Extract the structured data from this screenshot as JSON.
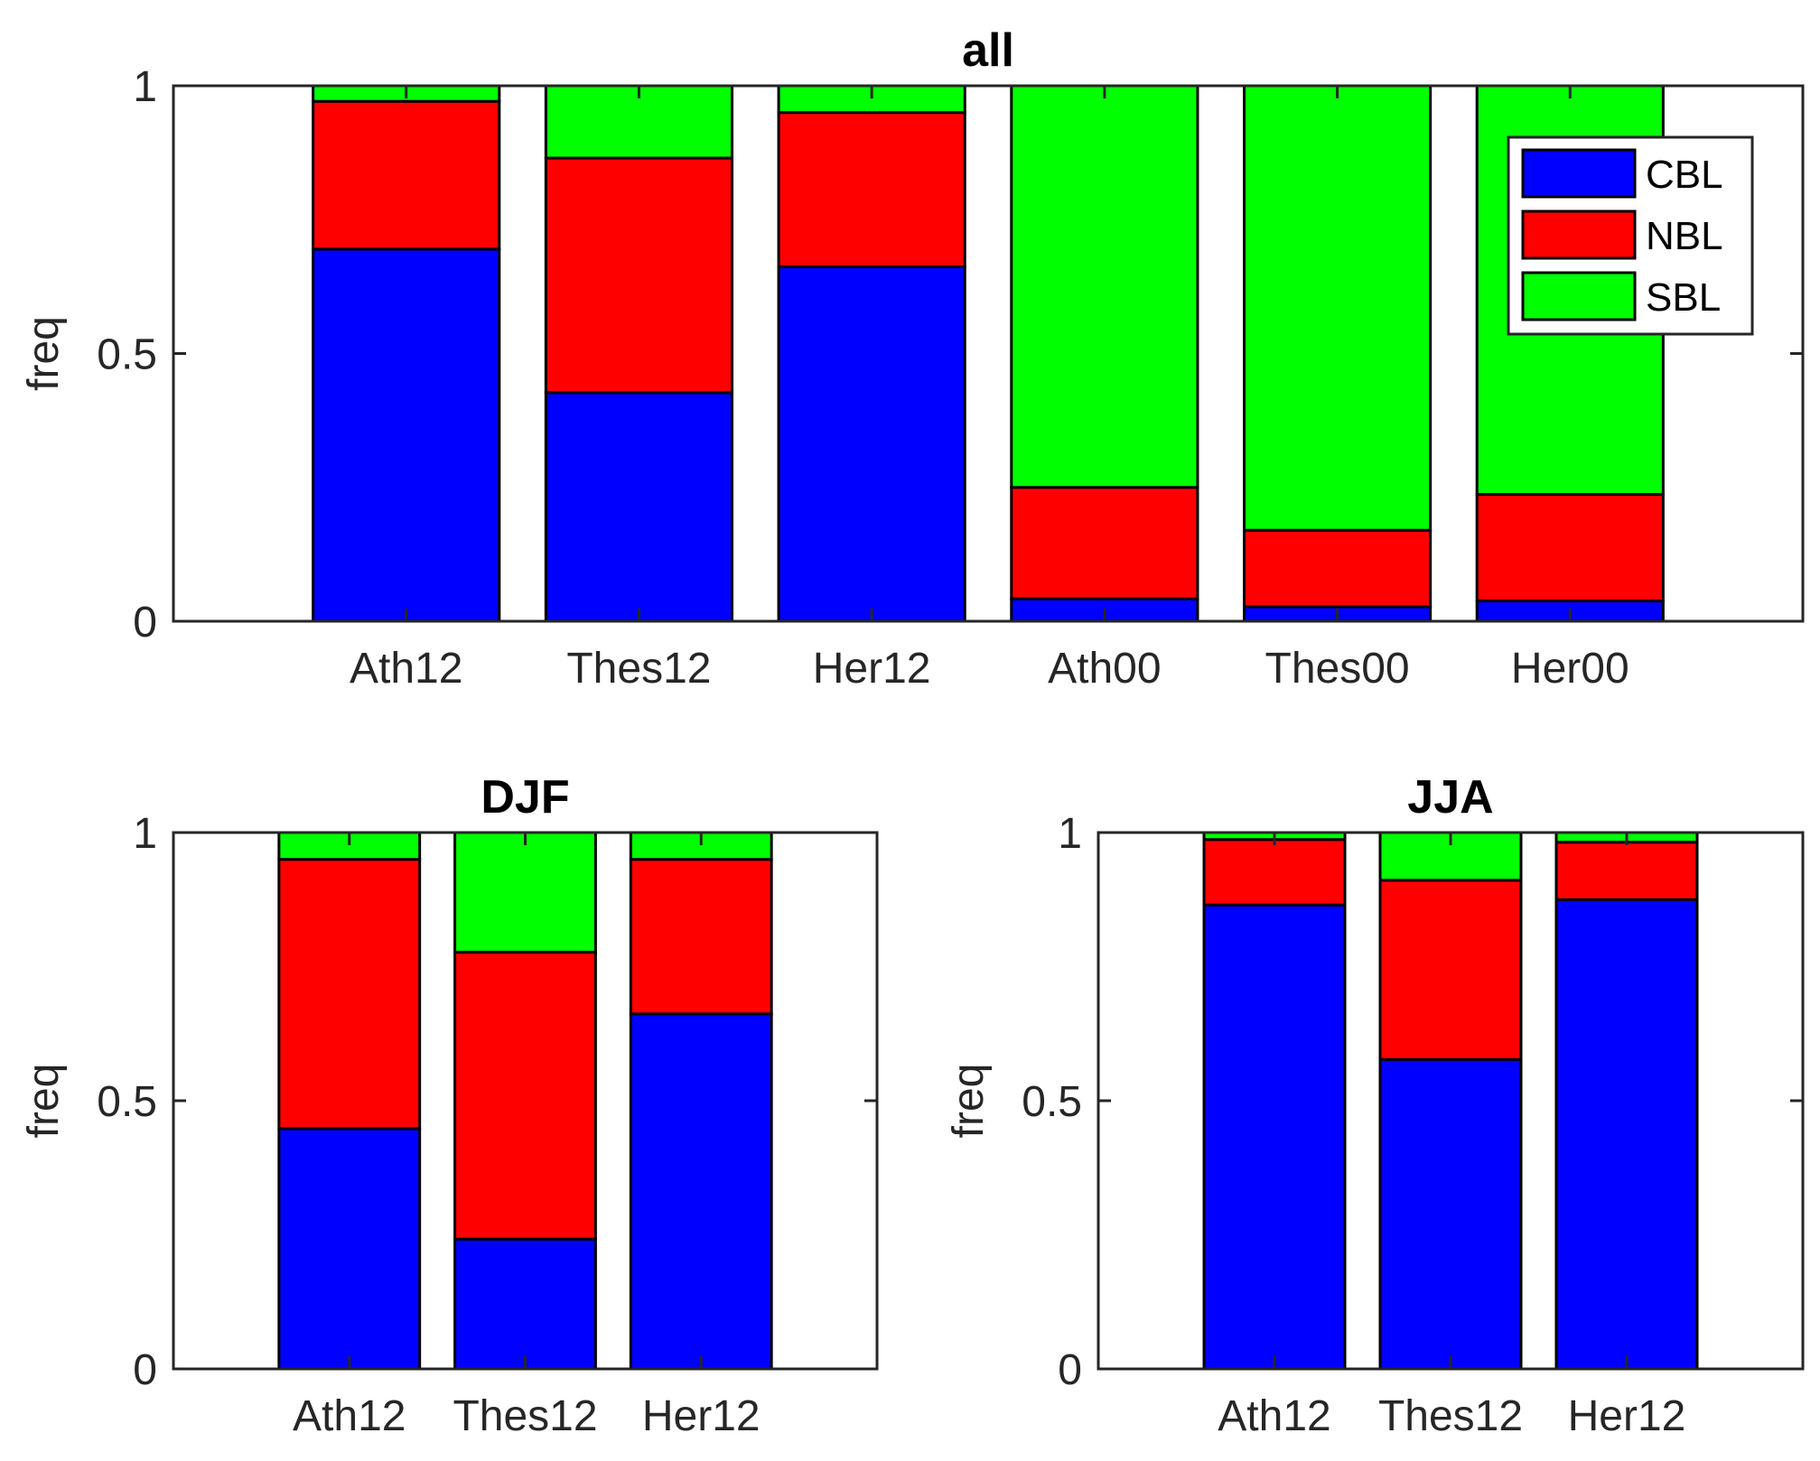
{
  "chart_data": [
    {
      "type": "bar",
      "stacked": true,
      "title": "all",
      "ylabel": "freq",
      "xlabel": "",
      "ylim": [
        0,
        1
      ],
      "yticks": [
        0,
        0.5,
        1
      ],
      "ytick_labels": [
        "0",
        "0.5",
        "1"
      ],
      "xlim": [
        0,
        7
      ],
      "categories": [
        "Ath12",
        "Thes12",
        "Her12",
        "Ath00",
        "Thes00",
        "Her00"
      ],
      "series": [
        {
          "name": "CBL",
          "color": "#0000ff",
          "values": [
            0.695,
            0.427,
            0.662,
            0.042,
            0.027,
            0.038
          ]
        },
        {
          "name": "NBL",
          "color": "#ff0000",
          "values": [
            0.276,
            0.438,
            0.288,
            0.208,
            0.143,
            0.199
          ]
        },
        {
          "name": "SBL",
          "color": "#00ff00",
          "values": [
            0.029,
            0.135,
            0.05,
            0.75,
            0.83,
            0.763
          ]
        }
      ],
      "legend": {
        "position": "top-right",
        "entries": [
          "CBL",
          "NBL",
          "SBL"
        ]
      }
    },
    {
      "type": "bar",
      "stacked": true,
      "title": "DJF",
      "ylabel": "freq",
      "xlabel": "",
      "ylim": [
        0,
        1
      ],
      "yticks": [
        0,
        0.5,
        1
      ],
      "ytick_labels": [
        "0",
        "0.5",
        "1"
      ],
      "xlim": [
        0,
        4
      ],
      "categories": [
        "Ath12",
        "Thes12",
        "Her12"
      ],
      "series": [
        {
          "name": "CBL",
          "color": "#0000ff",
          "values": [
            0.448,
            0.242,
            0.662
          ]
        },
        {
          "name": "NBL",
          "color": "#ff0000",
          "values": [
            0.502,
            0.535,
            0.288
          ]
        },
        {
          "name": "SBL",
          "color": "#00ff00",
          "values": [
            0.05,
            0.223,
            0.05
          ]
        }
      ]
    },
    {
      "type": "bar",
      "stacked": true,
      "title": "JJA",
      "ylabel": "freq",
      "xlabel": "",
      "ylim": [
        0,
        1
      ],
      "yticks": [
        0,
        0.5,
        1
      ],
      "ytick_labels": [
        "0",
        "0.5",
        "1"
      ],
      "xlim": [
        0,
        4
      ],
      "categories": [
        "Ath12",
        "Thes12",
        "Her12"
      ],
      "series": [
        {
          "name": "CBL",
          "color": "#0000ff",
          "values": [
            0.865,
            0.577,
            0.875
          ]
        },
        {
          "name": "NBL",
          "color": "#ff0000",
          "values": [
            0.122,
            0.334,
            0.107
          ]
        },
        {
          "name": "SBL",
          "color": "#00ff00",
          "values": [
            0.013,
            0.089,
            0.018
          ]
        }
      ]
    }
  ]
}
